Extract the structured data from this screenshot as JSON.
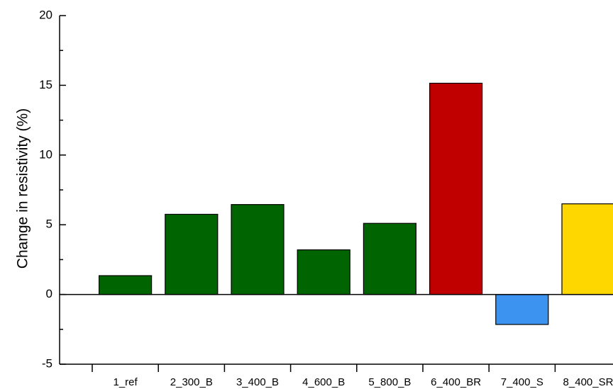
{
  "chart_data": {
    "type": "bar",
    "ylabel": "Change in resistivity (%)",
    "xlabel": "",
    "ylim": [
      -5,
      20
    ],
    "yticks": [
      -5,
      0,
      5,
      10,
      15,
      20
    ],
    "grid": false,
    "legend": "none",
    "categories": [
      "1_ref",
      "2_300_B",
      "3_400_B",
      "4_600_B",
      "5_800_B",
      "6_400_BR",
      "7_400_S",
      "8_400_SR"
    ],
    "values": [
      1.35,
      5.75,
      6.45,
      3.2,
      5.1,
      15.15,
      -2.15,
      6.5
    ],
    "colors": [
      "#006400",
      "#006400",
      "#006400",
      "#006400",
      "#006400",
      "#C00000",
      "#3C93F0",
      "#FFD700"
    ]
  }
}
